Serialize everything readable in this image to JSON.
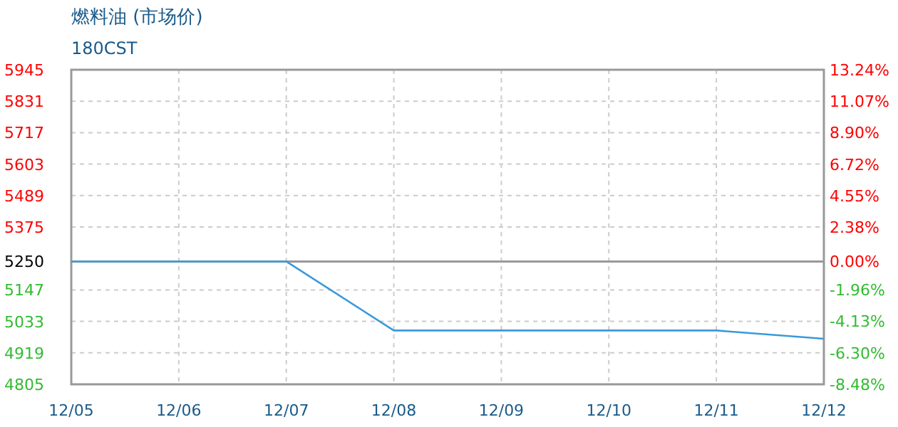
{
  "chart_data": {
    "type": "line",
    "title": "燃料油 (市场价)",
    "subtitle": "180CST",
    "categories": [
      "12/05",
      "12/06",
      "12/07",
      "12/08",
      "12/09",
      "12/10",
      "12/11",
      "12/12"
    ],
    "series": [
      {
        "color": "#3a9ad9",
        "values": [
          5250,
          5250,
          5250,
          5000,
          5000,
          5000,
          5000,
          4970
        ]
      }
    ],
    "ylim": [
      4805,
      5945
    ],
    "yticks": [
      4805,
      4919,
      5033,
      5147,
      5250,
      5375,
      5489,
      5603,
      5717,
      5831,
      5945
    ],
    "y2lim": [
      -8.48,
      13.24
    ],
    "y2ticks": [
      {
        "value": -8.48,
        "label": "-8.48%"
      },
      {
        "value": -6.3,
        "label": "-6.30%"
      },
      {
        "value": -4.13,
        "label": "-4.13%"
      },
      {
        "value": -1.96,
        "label": "-1.96%"
      },
      {
        "value": 0,
        "label": "0.00%"
      },
      {
        "value": 2.38,
        "label": "2.38%"
      },
      {
        "value": 4.55,
        "label": "4.55%"
      },
      {
        "value": 6.72,
        "label": "6.72%"
      },
      {
        "value": 8.9,
        "label": "8.90%"
      },
      {
        "value": 11.07,
        "label": "11.07%"
      },
      {
        "value": 13.24,
        "label": "13.24%"
      }
    ],
    "ref_lines": [
      {
        "axis": "y",
        "value": 5250,
        "color": "#999999"
      }
    ],
    "grid": true,
    "marker": "none",
    "line_style": "solid"
  }
}
